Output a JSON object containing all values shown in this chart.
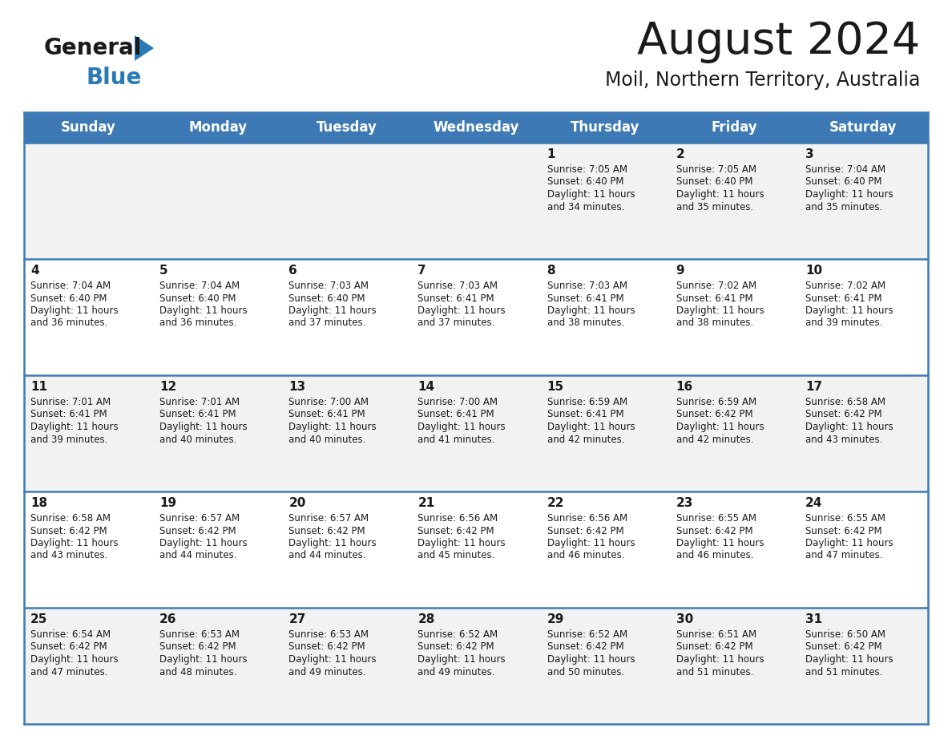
{
  "title": "August 2024",
  "subtitle": "Moil, Northern Territory, Australia",
  "header_color": "#3d7ab5",
  "header_text_color": "#ffffff",
  "row_bg_even": "#f2f2f2",
  "row_bg_odd": "#ffffff",
  "text_color": "#1a1a1a",
  "line_color": "#3d7ab5",
  "logo_color1": "#1a1a1a",
  "logo_color2": "#2a7ab5",
  "day_names": [
    "Sunday",
    "Monday",
    "Tuesday",
    "Wednesday",
    "Thursday",
    "Friday",
    "Saturday"
  ],
  "days": [
    {
      "row": 0,
      "col": 0,
      "num": "",
      "sunrise": "",
      "sunset": "",
      "daylight": ""
    },
    {
      "row": 0,
      "col": 1,
      "num": "",
      "sunrise": "",
      "sunset": "",
      "daylight": ""
    },
    {
      "row": 0,
      "col": 2,
      "num": "",
      "sunrise": "",
      "sunset": "",
      "daylight": ""
    },
    {
      "row": 0,
      "col": 3,
      "num": "",
      "sunrise": "",
      "sunset": "",
      "daylight": ""
    },
    {
      "row": 0,
      "col": 4,
      "num": "1",
      "sunrise": "Sunrise: 7:05 AM",
      "sunset": "Sunset: 6:40 PM",
      "daylight": "Daylight: 11 hours\nand 34 minutes."
    },
    {
      "row": 0,
      "col": 5,
      "num": "2",
      "sunrise": "Sunrise: 7:05 AM",
      "sunset": "Sunset: 6:40 PM",
      "daylight": "Daylight: 11 hours\nand 35 minutes."
    },
    {
      "row": 0,
      "col": 6,
      "num": "3",
      "sunrise": "Sunrise: 7:04 AM",
      "sunset": "Sunset: 6:40 PM",
      "daylight": "Daylight: 11 hours\nand 35 minutes."
    },
    {
      "row": 1,
      "col": 0,
      "num": "4",
      "sunrise": "Sunrise: 7:04 AM",
      "sunset": "Sunset: 6:40 PM",
      "daylight": "Daylight: 11 hours\nand 36 minutes."
    },
    {
      "row": 1,
      "col": 1,
      "num": "5",
      "sunrise": "Sunrise: 7:04 AM",
      "sunset": "Sunset: 6:40 PM",
      "daylight": "Daylight: 11 hours\nand 36 minutes."
    },
    {
      "row": 1,
      "col": 2,
      "num": "6",
      "sunrise": "Sunrise: 7:03 AM",
      "sunset": "Sunset: 6:40 PM",
      "daylight": "Daylight: 11 hours\nand 37 minutes."
    },
    {
      "row": 1,
      "col": 3,
      "num": "7",
      "sunrise": "Sunrise: 7:03 AM",
      "sunset": "Sunset: 6:41 PM",
      "daylight": "Daylight: 11 hours\nand 37 minutes."
    },
    {
      "row": 1,
      "col": 4,
      "num": "8",
      "sunrise": "Sunrise: 7:03 AM",
      "sunset": "Sunset: 6:41 PM",
      "daylight": "Daylight: 11 hours\nand 38 minutes."
    },
    {
      "row": 1,
      "col": 5,
      "num": "9",
      "sunrise": "Sunrise: 7:02 AM",
      "sunset": "Sunset: 6:41 PM",
      "daylight": "Daylight: 11 hours\nand 38 minutes."
    },
    {
      "row": 1,
      "col": 6,
      "num": "10",
      "sunrise": "Sunrise: 7:02 AM",
      "sunset": "Sunset: 6:41 PM",
      "daylight": "Daylight: 11 hours\nand 39 minutes."
    },
    {
      "row": 2,
      "col": 0,
      "num": "11",
      "sunrise": "Sunrise: 7:01 AM",
      "sunset": "Sunset: 6:41 PM",
      "daylight": "Daylight: 11 hours\nand 39 minutes."
    },
    {
      "row": 2,
      "col": 1,
      "num": "12",
      "sunrise": "Sunrise: 7:01 AM",
      "sunset": "Sunset: 6:41 PM",
      "daylight": "Daylight: 11 hours\nand 40 minutes."
    },
    {
      "row": 2,
      "col": 2,
      "num": "13",
      "sunrise": "Sunrise: 7:00 AM",
      "sunset": "Sunset: 6:41 PM",
      "daylight": "Daylight: 11 hours\nand 40 minutes."
    },
    {
      "row": 2,
      "col": 3,
      "num": "14",
      "sunrise": "Sunrise: 7:00 AM",
      "sunset": "Sunset: 6:41 PM",
      "daylight": "Daylight: 11 hours\nand 41 minutes."
    },
    {
      "row": 2,
      "col": 4,
      "num": "15",
      "sunrise": "Sunrise: 6:59 AM",
      "sunset": "Sunset: 6:41 PM",
      "daylight": "Daylight: 11 hours\nand 42 minutes."
    },
    {
      "row": 2,
      "col": 5,
      "num": "16",
      "sunrise": "Sunrise: 6:59 AM",
      "sunset": "Sunset: 6:42 PM",
      "daylight": "Daylight: 11 hours\nand 42 minutes."
    },
    {
      "row": 2,
      "col": 6,
      "num": "17",
      "sunrise": "Sunrise: 6:58 AM",
      "sunset": "Sunset: 6:42 PM",
      "daylight": "Daylight: 11 hours\nand 43 minutes."
    },
    {
      "row": 3,
      "col": 0,
      "num": "18",
      "sunrise": "Sunrise: 6:58 AM",
      "sunset": "Sunset: 6:42 PM",
      "daylight": "Daylight: 11 hours\nand 43 minutes."
    },
    {
      "row": 3,
      "col": 1,
      "num": "19",
      "sunrise": "Sunrise: 6:57 AM",
      "sunset": "Sunset: 6:42 PM",
      "daylight": "Daylight: 11 hours\nand 44 minutes."
    },
    {
      "row": 3,
      "col": 2,
      "num": "20",
      "sunrise": "Sunrise: 6:57 AM",
      "sunset": "Sunset: 6:42 PM",
      "daylight": "Daylight: 11 hours\nand 44 minutes."
    },
    {
      "row": 3,
      "col": 3,
      "num": "21",
      "sunrise": "Sunrise: 6:56 AM",
      "sunset": "Sunset: 6:42 PM",
      "daylight": "Daylight: 11 hours\nand 45 minutes."
    },
    {
      "row": 3,
      "col": 4,
      "num": "22",
      "sunrise": "Sunrise: 6:56 AM",
      "sunset": "Sunset: 6:42 PM",
      "daylight": "Daylight: 11 hours\nand 46 minutes."
    },
    {
      "row": 3,
      "col": 5,
      "num": "23",
      "sunrise": "Sunrise: 6:55 AM",
      "sunset": "Sunset: 6:42 PM",
      "daylight": "Daylight: 11 hours\nand 46 minutes."
    },
    {
      "row": 3,
      "col": 6,
      "num": "24",
      "sunrise": "Sunrise: 6:55 AM",
      "sunset": "Sunset: 6:42 PM",
      "daylight": "Daylight: 11 hours\nand 47 minutes."
    },
    {
      "row": 4,
      "col": 0,
      "num": "25",
      "sunrise": "Sunrise: 6:54 AM",
      "sunset": "Sunset: 6:42 PM",
      "daylight": "Daylight: 11 hours\nand 47 minutes."
    },
    {
      "row": 4,
      "col": 1,
      "num": "26",
      "sunrise": "Sunrise: 6:53 AM",
      "sunset": "Sunset: 6:42 PM",
      "daylight": "Daylight: 11 hours\nand 48 minutes."
    },
    {
      "row": 4,
      "col": 2,
      "num": "27",
      "sunrise": "Sunrise: 6:53 AM",
      "sunset": "Sunset: 6:42 PM",
      "daylight": "Daylight: 11 hours\nand 49 minutes."
    },
    {
      "row": 4,
      "col": 3,
      "num": "28",
      "sunrise": "Sunrise: 6:52 AM",
      "sunset": "Sunset: 6:42 PM",
      "daylight": "Daylight: 11 hours\nand 49 minutes."
    },
    {
      "row": 4,
      "col": 4,
      "num": "29",
      "sunrise": "Sunrise: 6:52 AM",
      "sunset": "Sunset: 6:42 PM",
      "daylight": "Daylight: 11 hours\nand 50 minutes."
    },
    {
      "row": 4,
      "col": 5,
      "num": "30",
      "sunrise": "Sunrise: 6:51 AM",
      "sunset": "Sunset: 6:42 PM",
      "daylight": "Daylight: 11 hours\nand 51 minutes."
    },
    {
      "row": 4,
      "col": 6,
      "num": "31",
      "sunrise": "Sunrise: 6:50 AM",
      "sunset": "Sunset: 6:42 PM",
      "daylight": "Daylight: 11 hours\nand 51 minutes."
    }
  ]
}
